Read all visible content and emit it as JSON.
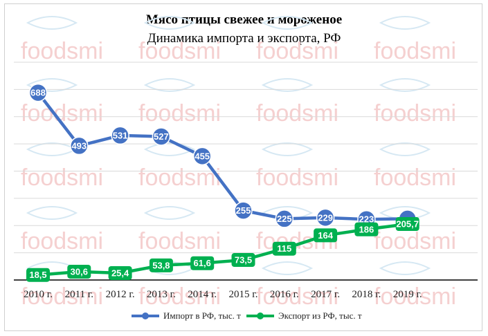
{
  "chart_data": {
    "type": "line",
    "title": "Мясо птицы свежее и мороженое",
    "subtitle": "Динамика импорта и экспорта, РФ",
    "categories": [
      "2010 г.",
      "2011 г.",
      "2012 г.",
      "2013 г.",
      "2014 г.",
      "2015 г.",
      "2016 г.",
      "2017 г.",
      "2018 г.",
      "2019 г."
    ],
    "series": [
      {
        "name": "Импорт в РФ, тыс. т",
        "values": [
          688,
          493,
          531,
          527,
          455,
          255,
          225,
          229,
          223,
          225
        ],
        "labels": [
          "688",
          "493",
          "531",
          "527",
          "455",
          "255",
          "225",
          "229",
          "223",
          ""
        ],
        "color": "#4472c4"
      },
      {
        "name": "Экспорт из РФ, тыс. т",
        "values": [
          18.5,
          30.6,
          25.4,
          53.8,
          61.6,
          73.5,
          115,
          164,
          186,
          205.7
        ],
        "labels": [
          "18,5",
          "30,6",
          "25,4",
          "53,8",
          "61,6",
          "73,5",
          "115",
          "164",
          "186",
          "205,7"
        ],
        "color": "#00b050"
      }
    ],
    "ylim": [
      0,
      800
    ],
    "grid": true,
    "legend": "bottom"
  },
  "watermark": "foodsmi"
}
